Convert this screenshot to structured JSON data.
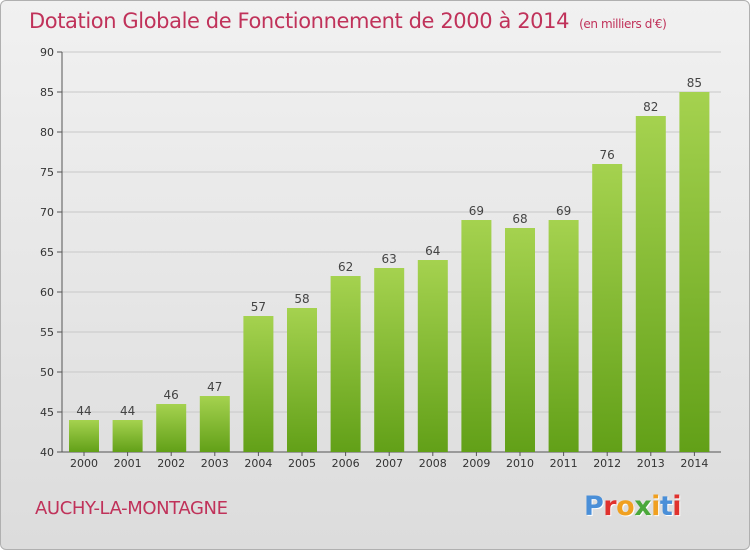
{
  "title": "Dotation Globale de Fonctionnement de 2000 à 2014",
  "subtitle": "(en milliers d'€)",
  "commune": "AUCHY-LA-MONTAGNE",
  "logo": {
    "text": "Proxiti",
    "letter_colors": [
      "#4a8fd8",
      "#e0322e",
      "#f0a020",
      "#4aa83a",
      "#f0a020",
      "#4a8fd8",
      "#e0322e"
    ]
  },
  "colors": {
    "bar_light": "#a5d24f",
    "bar_dark": "#62a018",
    "title": "#c0325a",
    "grid": "#c8c8c8"
  },
  "chart_data": {
    "type": "bar",
    "categories": [
      "2000",
      "2001",
      "2002",
      "2003",
      "2004",
      "2005",
      "2006",
      "2007",
      "2008",
      "2009",
      "2010",
      "2011",
      "2012",
      "2013",
      "2014"
    ],
    "values": [
      44,
      44,
      46,
      47,
      57,
      58,
      62,
      63,
      64,
      69,
      68,
      69,
      76,
      82,
      85
    ],
    "data_labels": [
      "44",
      "44",
      "46",
      "47",
      "57",
      "58",
      "62",
      "63",
      "64",
      "69",
      "68",
      "69",
      "76",
      "82",
      "85"
    ],
    "title": "Dotation Globale de Fonctionnement de 2000 à 2014",
    "xlabel": "",
    "ylabel": "",
    "ylim": [
      40,
      90
    ],
    "yticks": [
      40,
      45,
      50,
      55,
      60,
      65,
      70,
      75,
      80,
      85,
      90
    ],
    "grid": true
  }
}
